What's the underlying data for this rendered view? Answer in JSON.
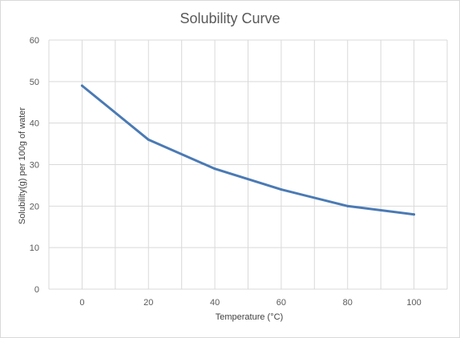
{
  "chart_data": {
    "type": "line",
    "title": "Solubility Curve",
    "xlabel": "Temperature (°C)",
    "ylabel": "Solubility(g) per 100g of water",
    "x_ticks": [
      "0",
      "20",
      "40",
      "60",
      "80",
      "100"
    ],
    "y_ticks": [
      "0",
      "10",
      "20",
      "30",
      "40",
      "50",
      "60"
    ],
    "xlim": [
      -10,
      110
    ],
    "ylim": [
      0,
      60
    ],
    "grid": true,
    "legend": "none",
    "series": [
      {
        "color": "#4a7ab4",
        "x": [
          0,
          20,
          40,
          60,
          80,
          100
        ],
        "y": [
          49,
          36,
          29,
          24,
          20,
          18
        ]
      }
    ]
  }
}
